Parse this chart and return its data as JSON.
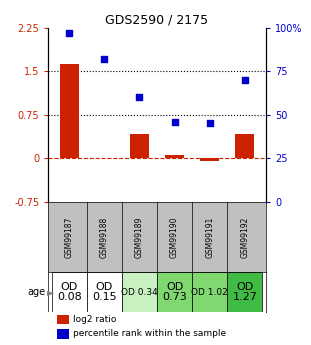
{
  "title": "GDS2590 / 2175",
  "samples": [
    "GSM99187",
    "GSM99188",
    "GSM99189",
    "GSM99190",
    "GSM99191",
    "GSM99192"
  ],
  "log2_ratios": [
    1.62,
    0.0,
    0.42,
    0.05,
    -0.04,
    0.42
  ],
  "percentile_ranks": [
    97,
    82,
    60,
    46,
    45,
    70
  ],
  "left_ylim": [
    -0.75,
    2.25
  ],
  "right_ylim": [
    0,
    100
  ],
  "left_yticks": [
    -0.75,
    0,
    0.75,
    1.5,
    2.25
  ],
  "right_yticks": [
    0,
    25,
    50,
    75,
    100
  ],
  "right_yticklabels": [
    "0",
    "25",
    "50",
    "75",
    "100%"
  ],
  "hline_positions": [
    0.75,
    1.5
  ],
  "dashed_line_y": 0,
  "bar_color": "#cc2200",
  "scatter_color": "#0000cc",
  "bar_width": 0.55,
  "age_labels": [
    "OD\n0.08",
    "OD\n0.15",
    "OD 0.34",
    "OD\n0.73",
    "OD 1.02",
    "OD\n1.27"
  ],
  "age_fontsize": [
    8,
    8,
    6.5,
    8,
    6.5,
    8
  ],
  "age_bg_colors": [
    "#ffffff",
    "#ffffff",
    "#c8f0c0",
    "#80d870",
    "#80d870",
    "#40bb44"
  ],
  "sample_bg_color": "#c0c0c0",
  "legend_labels": [
    "log2 ratio",
    "percentile rank within the sample"
  ],
  "legend_colors": [
    "#cc2200",
    "#0000cc"
  ]
}
